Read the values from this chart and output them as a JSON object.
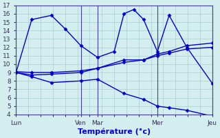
{
  "xlabel": "Température (°c)",
  "background_color": "#d4eef0",
  "grid_color": "#a8cdd0",
  "line_color": "#0000cc",
  "spine_color": "#4040a0",
  "vline_color": "#4040a0",
  "ylim": [
    4,
    17
  ],
  "yticks": [
    4,
    5,
    6,
    7,
    8,
    9,
    10,
    11,
    12,
    13,
    14,
    15,
    16,
    17
  ],
  "day_positions": [
    0.0,
    0.33,
    0.415,
    0.72,
    1.0
  ],
  "day_labels": [
    "Lun",
    "Ven",
    "Mar",
    "Mer",
    "Jeu"
  ],
  "series": [
    {
      "x": [
        0.0,
        0.08,
        0.18,
        0.25,
        0.33,
        0.415,
        0.5,
        0.55,
        0.6,
        0.65,
        0.72,
        0.78,
        0.87,
        1.0
      ],
      "y": [
        9.0,
        15.3,
        15.8,
        14.2,
        12.2,
        10.8,
        11.5,
        16.0,
        16.5,
        15.3,
        11.5,
        15.8,
        12.0,
        7.7
      ]
    },
    {
      "x": [
        0.0,
        0.08,
        0.18,
        0.33,
        0.415,
        0.55,
        0.65,
        0.72,
        0.78,
        0.87,
        1.0
      ],
      "y": [
        9.1,
        9.0,
        9.0,
        9.2,
        9.5,
        10.5,
        10.5,
        11.2,
        11.5,
        12.2,
        12.5
      ]
    },
    {
      "x": [
        0.0,
        0.08,
        0.18,
        0.33,
        0.415,
        0.55,
        0.65,
        0.72,
        0.78,
        0.87,
        1.0
      ],
      "y": [
        9.0,
        8.7,
        8.8,
        9.0,
        9.5,
        10.2,
        10.5,
        11.0,
        11.3,
        11.8,
        12.0
      ]
    },
    {
      "x": [
        0.0,
        0.08,
        0.18,
        0.33,
        0.415,
        0.55,
        0.65,
        0.72,
        0.78,
        0.87,
        1.0
      ],
      "y": [
        9.0,
        8.5,
        7.8,
        8.0,
        8.2,
        6.5,
        5.8,
        5.0,
        4.8,
        4.5,
        3.8
      ]
    }
  ],
  "marker": "D",
  "marker_size": 2.5,
  "line_width": 1.0
}
